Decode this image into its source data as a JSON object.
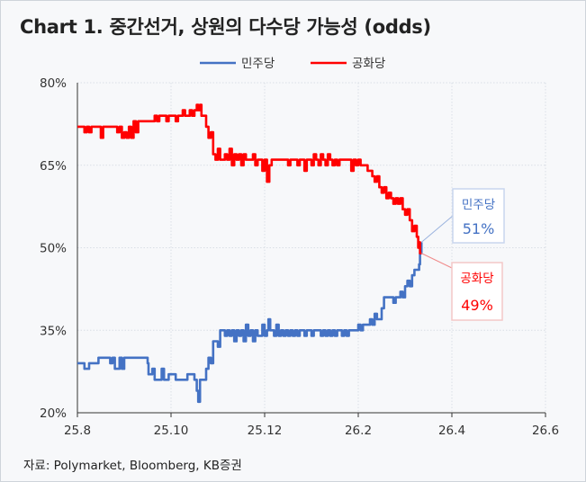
{
  "page_title": "Chart 1. 중간선거, 상원의 다수당 가능성 (odds)",
  "source_note": "자료: Polymarket, Bloomberg, KB증권",
  "colors": {
    "dem": "#4472C4",
    "rep": "#FF0000",
    "grid": "#D9DEE5",
    "axis": "#333333",
    "text": "#333333"
  },
  "chart_data": {
    "type": "line",
    "title": "Chart 1. 중간선거, 상원의 다수당 가능성 (odds)",
    "xlabel": "",
    "ylabel": "",
    "x_ticks": [
      "25.8",
      "25.10",
      "25.12",
      "26.2",
      "26.4",
      "26.6"
    ],
    "x_tick_values": [
      0,
      2,
      4,
      6,
      8,
      10
    ],
    "xlim": [
      0,
      10
    ],
    "y_ticks": [
      "20%",
      "35%",
      "50%",
      "65%",
      "80%"
    ],
    "y_tick_values": [
      20,
      35,
      50,
      65,
      80
    ],
    "ylim": [
      20,
      80
    ],
    "grid": true,
    "legend_position": "top-center",
    "series": [
      {
        "name": "민주당",
        "color": "#4472C4",
        "end_label": "민주당",
        "end_value_label": "51%",
        "points": [
          [
            0.0,
            29
          ],
          [
            0.1,
            29
          ],
          [
            0.15,
            28
          ],
          [
            0.25,
            29
          ],
          [
            0.35,
            29
          ],
          [
            0.4,
            29
          ],
          [
            0.45,
            30
          ],
          [
            0.55,
            30
          ],
          [
            0.65,
            30
          ],
          [
            0.7,
            29
          ],
          [
            0.75,
            30
          ],
          [
            0.8,
            28
          ],
          [
            0.9,
            30
          ],
          [
            0.95,
            28
          ],
          [
            1.0,
            30
          ],
          [
            1.1,
            30
          ],
          [
            1.2,
            30
          ],
          [
            1.3,
            30
          ],
          [
            1.4,
            30
          ],
          [
            1.5,
            29
          ],
          [
            1.52,
            27
          ],
          [
            1.6,
            28
          ],
          [
            1.65,
            26
          ],
          [
            1.75,
            26
          ],
          [
            1.8,
            28
          ],
          [
            1.85,
            26
          ],
          [
            1.95,
            27
          ],
          [
            2.0,
            27
          ],
          [
            2.1,
            26
          ],
          [
            2.2,
            26
          ],
          [
            2.3,
            26
          ],
          [
            2.35,
            27
          ],
          [
            2.45,
            27
          ],
          [
            2.5,
            26
          ],
          [
            2.55,
            24
          ],
          [
            2.58,
            22
          ],
          [
            2.62,
            26
          ],
          [
            2.7,
            26
          ],
          [
            2.75,
            28
          ],
          [
            2.8,
            30
          ],
          [
            2.85,
            29
          ],
          [
            2.9,
            33
          ],
          [
            2.95,
            33
          ],
          [
            3.0,
            32
          ],
          [
            3.05,
            35
          ],
          [
            3.1,
            35
          ],
          [
            3.15,
            34
          ],
          [
            3.2,
            35
          ],
          [
            3.25,
            34
          ],
          [
            3.3,
            35
          ],
          [
            3.35,
            33
          ],
          [
            3.4,
            35
          ],
          [
            3.45,
            34
          ],
          [
            3.5,
            35
          ],
          [
            3.55,
            33
          ],
          [
            3.6,
            36
          ],
          [
            3.65,
            34
          ],
          [
            3.7,
            35
          ],
          [
            3.75,
            33
          ],
          [
            3.8,
            35
          ],
          [
            3.85,
            34
          ],
          [
            3.9,
            34
          ],
          [
            3.95,
            36
          ],
          [
            4.0,
            34
          ],
          [
            4.05,
            35
          ],
          [
            4.08,
            37
          ],
          [
            4.12,
            35
          ],
          [
            4.2,
            34
          ],
          [
            4.25,
            36
          ],
          [
            4.3,
            34
          ],
          [
            4.35,
            35
          ],
          [
            4.4,
            34
          ],
          [
            4.45,
            35
          ],
          [
            4.5,
            34
          ],
          [
            4.55,
            35
          ],
          [
            4.6,
            34
          ],
          [
            4.65,
            35
          ],
          [
            4.7,
            34
          ],
          [
            4.75,
            35
          ],
          [
            4.8,
            35
          ],
          [
            4.85,
            34
          ],
          [
            4.9,
            35
          ],
          [
            5.0,
            34
          ],
          [
            5.05,
            35
          ],
          [
            5.1,
            35
          ],
          [
            5.15,
            35
          ],
          [
            5.2,
            34
          ],
          [
            5.25,
            35
          ],
          [
            5.3,
            34
          ],
          [
            5.35,
            35
          ],
          [
            5.4,
            34
          ],
          [
            5.45,
            35
          ],
          [
            5.5,
            34
          ],
          [
            5.55,
            35
          ],
          [
            5.6,
            35
          ],
          [
            5.65,
            34
          ],
          [
            5.7,
            35
          ],
          [
            5.75,
            34
          ],
          [
            5.8,
            35
          ],
          [
            5.85,
            35
          ],
          [
            5.9,
            35
          ],
          [
            5.95,
            35
          ],
          [
            6.0,
            36
          ],
          [
            6.05,
            35
          ],
          [
            6.1,
            36
          ],
          [
            6.15,
            36
          ],
          [
            6.2,
            36
          ],
          [
            6.25,
            37
          ],
          [
            6.3,
            36
          ],
          [
            6.35,
            38
          ],
          [
            6.4,
            37
          ],
          [
            6.45,
            37
          ],
          [
            6.5,
            39
          ],
          [
            6.55,
            41
          ],
          [
            6.6,
            41
          ],
          [
            6.65,
            41
          ],
          [
            6.7,
            41
          ],
          [
            6.75,
            40
          ],
          [
            6.8,
            41
          ],
          [
            6.85,
            41
          ],
          [
            6.9,
            42
          ],
          [
            6.95,
            41
          ],
          [
            7.0,
            43
          ],
          [
            7.05,
            44
          ],
          [
            7.1,
            43
          ],
          [
            7.15,
            45
          ],
          [
            7.2,
            46
          ],
          [
            7.25,
            46
          ],
          [
            7.3,
            47
          ],
          [
            7.32,
            49
          ],
          [
            7.35,
            51
          ]
        ]
      },
      {
        "name": "공화당",
        "color": "#FF0000",
        "end_label": "공화당",
        "end_value_label": "49%",
        "points": [
          [
            0.0,
            72
          ],
          [
            0.1,
            72
          ],
          [
            0.15,
            71
          ],
          [
            0.2,
            72
          ],
          [
            0.25,
            71
          ],
          [
            0.3,
            72
          ],
          [
            0.35,
            72
          ],
          [
            0.4,
            72
          ],
          [
            0.45,
            72
          ],
          [
            0.5,
            70
          ],
          [
            0.55,
            72
          ],
          [
            0.6,
            72
          ],
          [
            0.65,
            72
          ],
          [
            0.7,
            72
          ],
          [
            0.8,
            72
          ],
          [
            0.85,
            71
          ],
          [
            0.9,
            72
          ],
          [
            0.95,
            70
          ],
          [
            1.0,
            71
          ],
          [
            1.05,
            70
          ],
          [
            1.1,
            72
          ],
          [
            1.15,
            70
          ],
          [
            1.2,
            73
          ],
          [
            1.25,
            71
          ],
          [
            1.3,
            73
          ],
          [
            1.35,
            73
          ],
          [
            1.4,
            73
          ],
          [
            1.5,
            73
          ],
          [
            1.6,
            73
          ],
          [
            1.65,
            74
          ],
          [
            1.7,
            73
          ],
          [
            1.75,
            74
          ],
          [
            1.85,
            74
          ],
          [
            1.9,
            73
          ],
          [
            1.95,
            74
          ],
          [
            2.0,
            74
          ],
          [
            2.05,
            74
          ],
          [
            2.1,
            73
          ],
          [
            2.15,
            74
          ],
          [
            2.2,
            74
          ],
          [
            2.25,
            75
          ],
          [
            2.3,
            74
          ],
          [
            2.35,
            74
          ],
          [
            2.4,
            75
          ],
          [
            2.45,
            74
          ],
          [
            2.5,
            75
          ],
          [
            2.55,
            76
          ],
          [
            2.58,
            75
          ],
          [
            2.62,
            76
          ],
          [
            2.65,
            74
          ],
          [
            2.7,
            74
          ],
          [
            2.75,
            72
          ],
          [
            2.8,
            70
          ],
          [
            2.85,
            71
          ],
          [
            2.9,
            67
          ],
          [
            2.95,
            66
          ],
          [
            3.0,
            68
          ],
          [
            3.05,
            66
          ],
          [
            3.1,
            66
          ],
          [
            3.15,
            67
          ],
          [
            3.2,
            66
          ],
          [
            3.25,
            68
          ],
          [
            3.3,
            65
          ],
          [
            3.35,
            67
          ],
          [
            3.4,
            66
          ],
          [
            3.45,
            67
          ],
          [
            3.5,
            65
          ],
          [
            3.55,
            67
          ],
          [
            3.6,
            66
          ],
          [
            3.65,
            66
          ],
          [
            3.7,
            66
          ],
          [
            3.75,
            67
          ],
          [
            3.8,
            65
          ],
          [
            3.85,
            66
          ],
          [
            3.9,
            66
          ],
          [
            3.95,
            64
          ],
          [
            4.0,
            66
          ],
          [
            4.05,
            62
          ],
          [
            4.1,
            65
          ],
          [
            4.15,
            66
          ],
          [
            4.2,
            66
          ],
          [
            4.25,
            66
          ],
          [
            4.3,
            66
          ],
          [
            4.35,
            66
          ],
          [
            4.4,
            66
          ],
          [
            4.45,
            66
          ],
          [
            4.5,
            65
          ],
          [
            4.55,
            66
          ],
          [
            4.6,
            66
          ],
          [
            4.65,
            66
          ],
          [
            4.7,
            65
          ],
          [
            4.75,
            66
          ],
          [
            4.8,
            66
          ],
          [
            4.85,
            64
          ],
          [
            4.9,
            66
          ],
          [
            4.95,
            66
          ],
          [
            5.0,
            65
          ],
          [
            5.05,
            67
          ],
          [
            5.1,
            66
          ],
          [
            5.15,
            65
          ],
          [
            5.2,
            67
          ],
          [
            5.25,
            66
          ],
          [
            5.3,
            65
          ],
          [
            5.35,
            67
          ],
          [
            5.4,
            66
          ],
          [
            5.45,
            65
          ],
          [
            5.5,
            66
          ],
          [
            5.55,
            65
          ],
          [
            5.6,
            66
          ],
          [
            5.65,
            66
          ],
          [
            5.7,
            66
          ],
          [
            5.75,
            66
          ],
          [
            5.8,
            66
          ],
          [
            5.85,
            64
          ],
          [
            5.9,
            66
          ],
          [
            5.95,
            65
          ],
          [
            6.0,
            66
          ],
          [
            6.05,
            65
          ],
          [
            6.1,
            65
          ],
          [
            6.15,
            65
          ],
          [
            6.2,
            64
          ],
          [
            6.25,
            64
          ],
          [
            6.3,
            63
          ],
          [
            6.35,
            62
          ],
          [
            6.4,
            63
          ],
          [
            6.45,
            61
          ],
          [
            6.5,
            60
          ],
          [
            6.55,
            61
          ],
          [
            6.6,
            59
          ],
          [
            6.65,
            60
          ],
          [
            6.7,
            59
          ],
          [
            6.75,
            58
          ],
          [
            6.8,
            59
          ],
          [
            6.85,
            58
          ],
          [
            6.9,
            59
          ],
          [
            6.95,
            57
          ],
          [
            7.0,
            56
          ],
          [
            7.05,
            57
          ],
          [
            7.1,
            55
          ],
          [
            7.15,
            53
          ],
          [
            7.2,
            54
          ],
          [
            7.25,
            52
          ],
          [
            7.28,
            50
          ],
          [
            7.3,
            51
          ],
          [
            7.32,
            49
          ],
          [
            7.35,
            49
          ]
        ]
      }
    ]
  }
}
